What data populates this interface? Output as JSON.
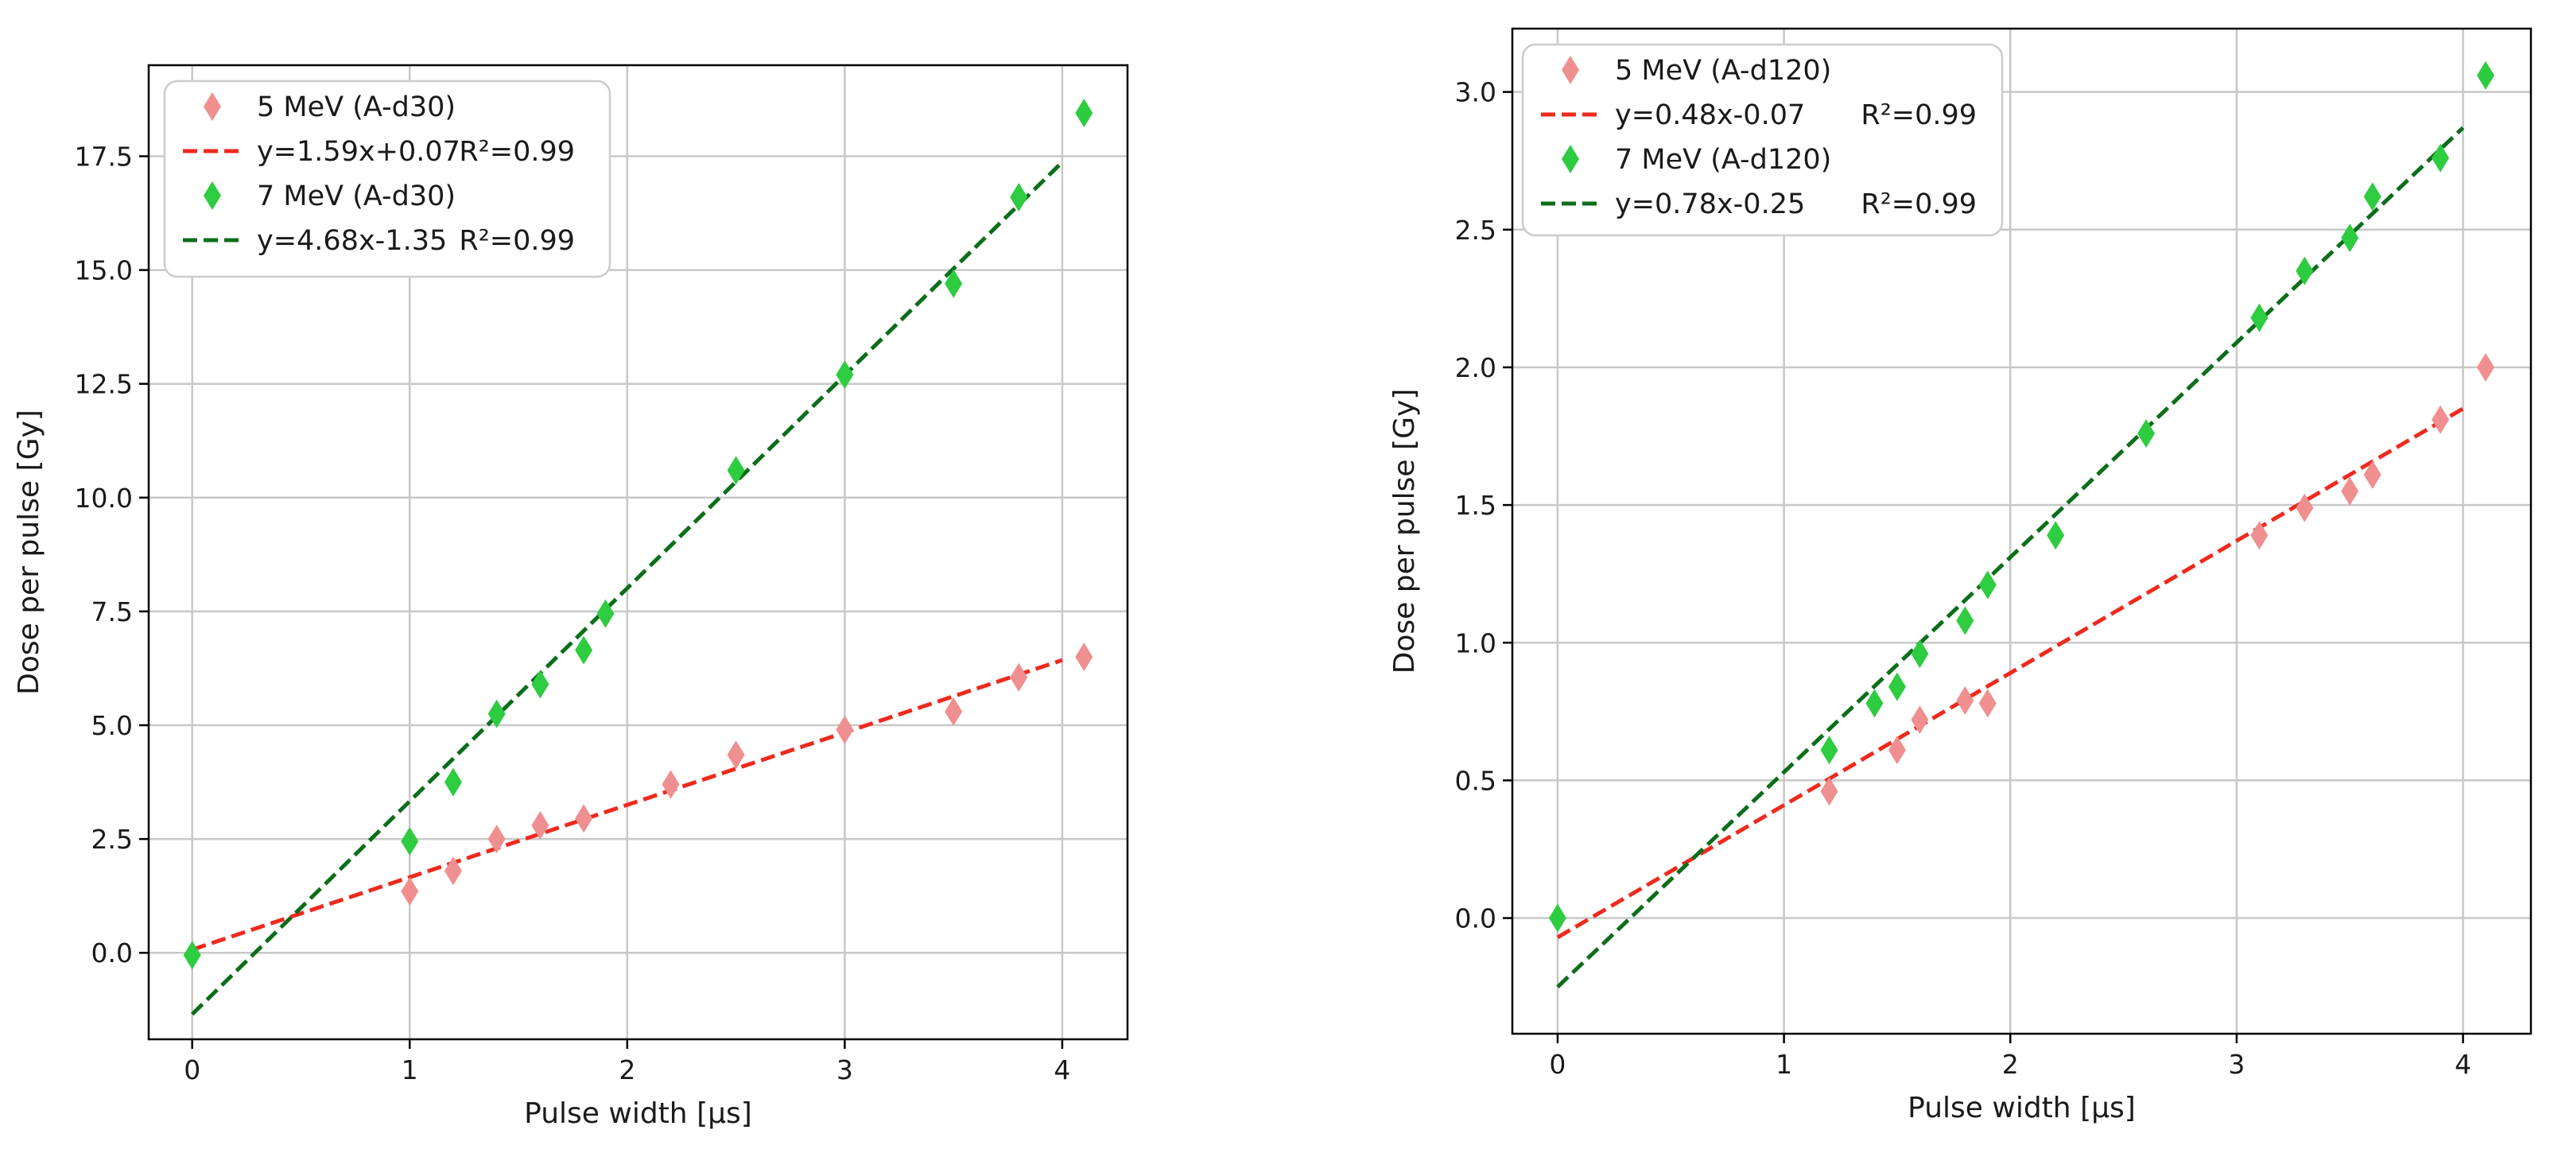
{
  "chart_data": [
    {
      "type": "scatter",
      "title": "",
      "xlabel": "Pulse width [μs]",
      "ylabel": "Dose per pulse [Gy]",
      "xlim": [
        -0.2,
        4.3
      ],
      "ylim": [
        -1.9,
        19.5
      ],
      "xticks": [
        0,
        1,
        2,
        3,
        4
      ],
      "xtick_labels": [
        "0",
        "1",
        "2",
        "3",
        "4"
      ],
      "yticks": [
        0,
        2.5,
        5,
        7.5,
        10,
        12.5,
        15,
        17.5
      ],
      "ytick_labels": [
        "0.0",
        "2.5",
        "5.0",
        "7.5",
        "10.0",
        "12.5",
        "15.0",
        "17.5"
      ],
      "grid": true,
      "legend_position": "top-left",
      "series": [
        {
          "name": "5 MeV (A-d30)",
          "kind": "scatter",
          "marker": "thin-diamond",
          "color": "#f08f8f",
          "x": [
            1.0,
            1.2,
            1.4,
            1.6,
            1.8,
            2.2,
            2.5,
            3.0,
            3.5,
            3.8,
            4.1
          ],
          "y": [
            1.35,
            1.8,
            2.5,
            2.8,
            2.95,
            3.7,
            4.35,
            4.9,
            5.3,
            6.05,
            6.5
          ]
        },
        {
          "name": "y=1.59x+0.07",
          "r2_label": "R²=0.99",
          "kind": "fit",
          "color": "#ee2a1e",
          "slope": 1.59,
          "intercept": 0.07,
          "x_range": [
            0,
            4
          ]
        },
        {
          "name": "7 MeV (A-d30)",
          "kind": "scatter",
          "marker": "thin-diamond",
          "color": "#2ecc40",
          "x": [
            0.0,
            1.0,
            1.2,
            1.4,
            1.6,
            1.8,
            1.9,
            2.5,
            3.0,
            3.5,
            3.8,
            4.1
          ],
          "y": [
            -0.05,
            2.45,
            3.75,
            5.25,
            5.9,
            6.65,
            7.45,
            10.6,
            12.7,
            14.7,
            16.6,
            18.45
          ]
        },
        {
          "name": "y=4.68x-1.35",
          "r2_label": "R²=0.99",
          "kind": "fit",
          "color": "#0c6e1a",
          "slope": 4.68,
          "intercept": -1.35,
          "x_range": [
            0,
            4
          ]
        }
      ]
    },
    {
      "type": "scatter",
      "title": "",
      "xlabel": "Pulse width [μs]",
      "ylabel": "Dose per pulse [Gy]",
      "xlim": [
        -0.2,
        4.3
      ],
      "ylim": [
        -0.42,
        3.23
      ],
      "xticks": [
        0,
        1,
        2,
        3,
        4
      ],
      "xtick_labels": [
        "0",
        "1",
        "2",
        "3",
        "4"
      ],
      "yticks": [
        0,
        0.5,
        1,
        1.5,
        2,
        2.5,
        3
      ],
      "ytick_labels": [
        "0.0",
        "0.5",
        "1.0",
        "1.5",
        "2.0",
        "2.5",
        "3.0"
      ],
      "grid": true,
      "legend_position": "top-left",
      "series": [
        {
          "name": "5 MeV (A-d120)",
          "kind": "scatter",
          "marker": "thin-diamond",
          "color": "#f08f8f",
          "x": [
            1.2,
            1.5,
            1.6,
            1.8,
            1.9,
            3.1,
            3.3,
            3.5,
            3.6,
            3.9,
            4.1
          ],
          "y": [
            0.46,
            0.61,
            0.72,
            0.79,
            0.78,
            1.39,
            1.49,
            1.55,
            1.61,
            1.81,
            2.0
          ]
        },
        {
          "name": "y=0.48x-0.07",
          "r2_label": "R²=0.99",
          "kind": "fit",
          "color": "#ee2a1e",
          "slope": 0.48,
          "intercept": -0.07,
          "x_range": [
            0,
            4
          ]
        },
        {
          "name": "7 MeV (A-d120)",
          "kind": "scatter",
          "marker": "thin-diamond",
          "color": "#2ecc40",
          "x": [
            0.0,
            1.2,
            1.4,
            1.5,
            1.6,
            1.8,
            1.9,
            2.2,
            2.6,
            3.1,
            3.3,
            3.5,
            3.6,
            3.9,
            4.1
          ],
          "y": [
            0.0,
            0.61,
            0.78,
            0.84,
            0.96,
            1.08,
            1.21,
            1.39,
            1.76,
            2.18,
            2.35,
            2.47,
            2.62,
            2.76,
            3.06
          ]
        },
        {
          "name": "y=0.78x-0.25",
          "r2_label": "R²=0.99",
          "kind": "fit",
          "color": "#0c6e1a",
          "slope": 0.78,
          "intercept": -0.25,
          "x_range": [
            0,
            4
          ]
        }
      ]
    }
  ]
}
